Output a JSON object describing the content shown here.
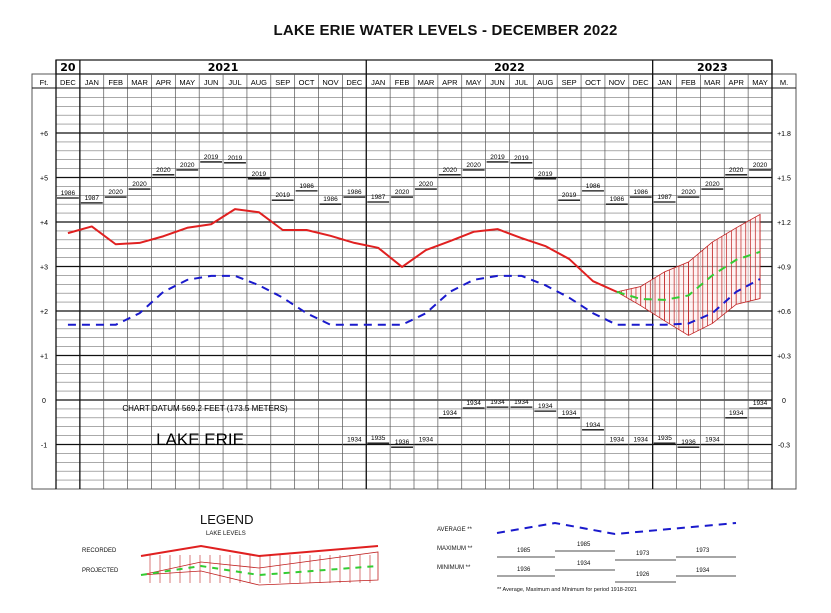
{
  "chart_data": {
    "type": "line",
    "title": "LAKE ERIE WATER LEVELS - DECEMBER 2022",
    "xlabel": "",
    "ylabel_left": "Ft.",
    "ylabel_right": "M.",
    "ylim": [
      -2.0,
      7.0
    ],
    "grid": true,
    "year_headers": [
      {
        "label": "20",
        "start": 0,
        "span": 1
      },
      {
        "label": "2021",
        "start": 1,
        "span": 12
      },
      {
        "label": "2022",
        "start": 13,
        "span": 12
      },
      {
        "label": "2023",
        "start": 25,
        "span": 5
      }
    ],
    "categories": [
      "DEC",
      "JAN",
      "FEB",
      "MAR",
      "APR",
      "MAY",
      "JUN",
      "JUL",
      "AUG",
      "SEP",
      "OCT",
      "NOV",
      "DEC",
      "JAN",
      "FEB",
      "MAR",
      "APR",
      "MAY",
      "JUN",
      "JUL",
      "AUG",
      "SEP",
      "OCT",
      "NOV",
      "DEC",
      "JAN",
      "FEB",
      "MAR",
      "APR",
      "MAY"
    ],
    "ft_ticks": [
      {
        "label": "+6",
        "value": 6
      },
      {
        "label": "+5",
        "value": 5
      },
      {
        "label": "+4",
        "value": 4
      },
      {
        "label": "+3",
        "value": 3
      },
      {
        "label": "+2",
        "value": 2
      },
      {
        "label": "+1",
        "value": 1
      },
      {
        "label": "0",
        "value": 0
      },
      {
        "label": "-1",
        "value": -1
      }
    ],
    "m_ticks": [
      {
        "label": "+1.8",
        "value": 6
      },
      {
        "label": "+1.5",
        "value": 5
      },
      {
        "label": "+1.2",
        "value": 4
      },
      {
        "label": "+0.9",
        "value": 3
      },
      {
        "label": "+0.6",
        "value": 2
      },
      {
        "label": "+0.3",
        "value": 1
      },
      {
        "label": "0",
        "value": 0
      },
      {
        "label": "-0.3",
        "value": -1
      }
    ],
    "series": [
      {
        "name": "Recorded",
        "color": "#e02020",
        "style": "solid",
        "start_index": 0,
        "values": [
          3.75,
          3.9,
          3.5,
          3.53,
          3.68,
          3.87,
          3.95,
          4.29,
          4.22,
          3.82,
          3.82,
          3.69,
          3.53,
          3.42,
          2.99,
          3.37,
          3.57,
          3.78,
          3.84,
          3.64,
          3.46,
          3.17,
          2.67,
          2.43
        ]
      },
      {
        "name": "Average **",
        "color": "#1a1acc",
        "style": "dashed",
        "start_index": 0,
        "values": [
          1.69,
          1.69,
          1.69,
          1.95,
          2.43,
          2.7,
          2.79,
          2.79,
          2.58,
          2.3,
          1.95,
          1.69,
          1.69,
          1.69,
          1.69,
          1.95,
          2.43,
          2.7,
          2.79,
          2.79,
          2.58,
          2.3,
          1.95,
          1.69,
          1.69,
          1.69,
          1.72,
          1.95,
          2.43,
          2.72
        ]
      },
      {
        "name": "Projected",
        "color": "#33cc33",
        "style": "dashed",
        "start_index": 23,
        "values": [
          2.43,
          2.27,
          2.25,
          2.35,
          2.8,
          3.15,
          3.33
        ]
      }
    ],
    "projection_band": {
      "color": "#c02020",
      "start_index": 23,
      "upper": [
        2.43,
        2.55,
        2.88,
        3.1,
        3.55,
        3.87,
        4.17
      ],
      "lower": [
        2.43,
        2.12,
        1.78,
        1.45,
        1.72,
        2.15,
        2.28
      ]
    },
    "maximum": {
      "values": [
        4.54,
        4.43,
        4.56,
        4.74,
        5.06,
        5.17,
        5.35,
        5.33,
        4.97,
        4.49,
        4.7,
        4.4,
        4.56,
        4.45,
        4.56,
        4.74,
        5.06,
        5.17,
        5.35,
        5.33,
        4.97,
        4.49,
        4.7,
        4.4,
        4.56,
        4.45,
        4.56,
        4.74,
        5.06,
        5.17
      ],
      "years": [
        "1986",
        "1987",
        "2020",
        "2020",
        "2020",
        "2020",
        "2019",
        "2019",
        "2019",
        "2019",
        "1986",
        "1986",
        "1986",
        "1987",
        "2020",
        "2020",
        "2020",
        "2020",
        "2019",
        "2019",
        "2019",
        "2019",
        "1986",
        "1986",
        "1986",
        "1987",
        "2020",
        "2020",
        "2020",
        "2020"
      ]
    },
    "minimum": {
      "values": [
        null,
        null,
        null,
        null,
        null,
        null,
        null,
        null,
        null,
        null,
        null,
        null,
        -1.0,
        -0.97,
        -1.06,
        -1.0,
        -0.4,
        -0.18,
        -0.16,
        -0.16,
        -0.25,
        -0.4,
        -0.67,
        -1.0,
        -1.0,
        -0.97,
        -1.06,
        -1.0,
        -0.4,
        -0.18
      ],
      "years": [
        null,
        null,
        null,
        null,
        null,
        null,
        null,
        null,
        null,
        null,
        null,
        null,
        "1934",
        "1935",
        "1936",
        "1934",
        "1934",
        "1934",
        "1934",
        "1934",
        "1934",
        "1934",
        "1934",
        "1934",
        "1934",
        "1935",
        "1936",
        "1934",
        "1934",
        "1934"
      ]
    },
    "annotations": [
      {
        "text": "CHART DATUM  569.2 FEET (173.5 METERS)"
      },
      {
        "text": "LAKE ERIE"
      }
    ]
  },
  "legend": {
    "title": "LEGEND",
    "subtitle": "LAKE LEVELS",
    "recorded_label": "RECORDED",
    "projected_label": "PROJECTED",
    "average_label": "AVERAGE **",
    "maximum_label": "MAXIMUM **",
    "minimum_label": "MINIMUM **",
    "max_years": [
      "1985",
      "1985",
      "1973",
      "1973"
    ],
    "min_years": [
      "1936",
      "1934",
      "1926",
      "1934"
    ],
    "footnote": "** Average, Maximum and Minimum for period 1918-2021"
  }
}
